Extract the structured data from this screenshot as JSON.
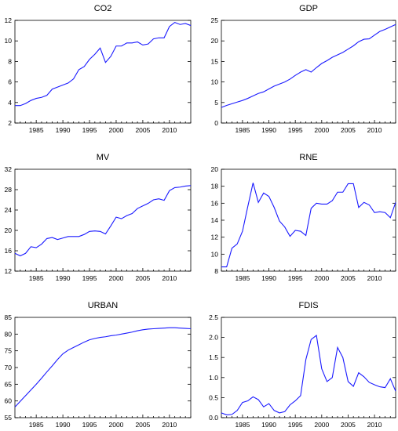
{
  "chart_data": [
    {
      "type": "line",
      "title": "CO2",
      "xlabel": "",
      "ylabel": "",
      "xlim": [
        1981,
        2014
      ],
      "ylim": [
        2,
        12
      ],
      "yticks": [
        2,
        4,
        6,
        8,
        10,
        12
      ],
      "xticks": [
        1985,
        1990,
        1995,
        2000,
        2005,
        2010
      ],
      "grid": false,
      "series": [
        {
          "color": "#1a1aff",
          "x": [
            1981,
            1982,
            1983,
            1984,
            1985,
            1986,
            1987,
            1988,
            1989,
            1990,
            1991,
            1992,
            1993,
            1994,
            1995,
            1996,
            1997,
            1998,
            1999,
            2000,
            2001,
            2002,
            2003,
            2004,
            2005,
            2006,
            2007,
            2008,
            2009,
            2010,
            2011,
            2012,
            2013,
            2014
          ],
          "y": [
            3.7,
            3.7,
            3.9,
            4.2,
            4.4,
            4.5,
            4.7,
            5.3,
            5.5,
            5.7,
            5.9,
            6.3,
            7.2,
            7.5,
            8.2,
            8.7,
            9.3,
            7.9,
            8.5,
            9.5,
            9.5,
            9.8,
            9.8,
            9.9,
            9.6,
            9.7,
            10.2,
            10.3,
            10.3,
            11.4,
            11.8,
            11.6,
            11.7,
            11.5
          ]
        }
      ]
    },
    {
      "type": "line",
      "title": "GDP",
      "xlabel": "",
      "ylabel": "",
      "xlim": [
        1981,
        2014
      ],
      "ylim": [
        0,
        25
      ],
      "yticks": [
        0,
        5,
        10,
        15,
        20,
        25
      ],
      "xticks": [
        1985,
        1990,
        1995,
        2000,
        2005,
        2010
      ],
      "grid": false,
      "series": [
        {
          "color": "#1a1aff",
          "x": [
            1981,
            1982,
            1983,
            1984,
            1985,
            1986,
            1987,
            1988,
            1989,
            1990,
            1991,
            1992,
            1993,
            1994,
            1995,
            1996,
            1997,
            1998,
            1999,
            2000,
            2001,
            2002,
            2003,
            2004,
            2005,
            2006,
            2007,
            2008,
            2009,
            2010,
            2011,
            2012,
            2013,
            2014
          ],
          "y": [
            3.8,
            4.3,
            4.7,
            5.1,
            5.5,
            6.0,
            6.6,
            7.2,
            7.6,
            8.3,
            9.0,
            9.5,
            10.0,
            10.7,
            11.6,
            12.4,
            13.0,
            12.4,
            13.5,
            14.5,
            15.2,
            16.0,
            16.6,
            17.2,
            18.0,
            18.8,
            19.8,
            20.4,
            20.5,
            21.4,
            22.3,
            22.8,
            23.4,
            24.0
          ]
        }
      ]
    },
    {
      "type": "line",
      "title": "MV",
      "xlabel": "",
      "ylabel": "",
      "xlim": [
        1981,
        2014
      ],
      "ylim": [
        12,
        32
      ],
      "yticks": [
        12,
        16,
        20,
        24,
        28,
        32
      ],
      "xticks": [
        1985,
        1990,
        1995,
        2000,
        2005,
        2010
      ],
      "grid": false,
      "series": [
        {
          "color": "#1a1aff",
          "x": [
            1981,
            1982,
            1983,
            1984,
            1985,
            1986,
            1987,
            1988,
            1989,
            1990,
            1991,
            1992,
            1993,
            1994,
            1995,
            1996,
            1997,
            1998,
            1999,
            2000,
            2001,
            2002,
            2003,
            2004,
            2005,
            2006,
            2007,
            2008,
            2009,
            2010,
            2011,
            2012,
            2013,
            2014
          ],
          "y": [
            15.5,
            15.0,
            15.5,
            16.8,
            16.6,
            17.3,
            18.4,
            18.6,
            18.2,
            18.5,
            18.8,
            18.8,
            18.8,
            19.2,
            19.8,
            19.9,
            19.8,
            19.3,
            20.9,
            22.6,
            22.3,
            22.9,
            23.3,
            24.3,
            24.8,
            25.3,
            26.0,
            26.2,
            25.9,
            27.8,
            28.4,
            28.5,
            28.7,
            28.8
          ]
        }
      ]
    },
    {
      "type": "line",
      "title": "RNE",
      "xlabel": "",
      "ylabel": "",
      "xlim": [
        1981,
        2014
      ],
      "ylim": [
        8,
        20
      ],
      "yticks": [
        8,
        10,
        12,
        14,
        16,
        18,
        20
      ],
      "xticks": [
        1985,
        1990,
        1995,
        2000,
        2005,
        2010
      ],
      "grid": false,
      "series": [
        {
          "color": "#1a1aff",
          "x": [
            1981,
            1982,
            1983,
            1984,
            1985,
            1986,
            1987,
            1988,
            1989,
            1990,
            1991,
            1992,
            1993,
            1994,
            1995,
            1996,
            1997,
            1998,
            1999,
            2000,
            2001,
            2002,
            2003,
            2004,
            2005,
            2006,
            2007,
            2008,
            2009,
            2010,
            2011,
            2012,
            2013,
            2014
          ],
          "y": [
            8.5,
            8.5,
            10.7,
            11.2,
            12.7,
            15.6,
            18.4,
            16.1,
            17.2,
            16.8,
            15.5,
            13.9,
            13.2,
            12.1,
            12.8,
            12.7,
            12.2,
            15.4,
            16.0,
            15.9,
            15.9,
            16.3,
            17.3,
            17.3,
            18.3,
            18.3,
            15.5,
            16.1,
            15.8,
            14.9,
            15.0,
            14.9,
            14.3,
            16.1
          ]
        }
      ]
    },
    {
      "type": "line",
      "title": "URBAN",
      "xlabel": "",
      "ylabel": "",
      "xlim": [
        1981,
        2014
      ],
      "ylim": [
        55,
        85
      ],
      "yticks": [
        55,
        60,
        65,
        70,
        75,
        80,
        85
      ],
      "xticks": [
        1985,
        1990,
        1995,
        2000,
        2005,
        2010
      ],
      "grid": false,
      "series": [
        {
          "color": "#1a1aff",
          "x": [
            1981,
            1982,
            1983,
            1984,
            1985,
            1986,
            1987,
            1988,
            1989,
            1990,
            1991,
            1992,
            1993,
            1994,
            1995,
            1996,
            1997,
            1998,
            1999,
            2000,
            2001,
            2002,
            2003,
            2004,
            2005,
            2006,
            2007,
            2008,
            2009,
            2010,
            2011,
            2012,
            2013,
            2014
          ],
          "y": [
            58.2,
            59.9,
            61.6,
            63.3,
            65.0,
            66.8,
            68.7,
            70.5,
            72.4,
            74.1,
            75.2,
            76.0,
            76.8,
            77.6,
            78.3,
            78.7,
            79.0,
            79.2,
            79.5,
            79.7,
            80.0,
            80.3,
            80.6,
            81.0,
            81.3,
            81.5,
            81.6,
            81.7,
            81.8,
            81.9,
            81.9,
            81.8,
            81.7,
            81.6
          ]
        }
      ]
    },
    {
      "type": "line",
      "title": "FDIS",
      "xlabel": "",
      "ylabel": "",
      "xlim": [
        1981,
        2014
      ],
      "ylim": [
        0.0,
        2.5
      ],
      "yticks": [
        0.0,
        0.5,
        1.0,
        1.5,
        2.0,
        2.5
      ],
      "xticks": [
        1985,
        1990,
        1995,
        2000,
        2005,
        2010
      ],
      "grid": false,
      "series": [
        {
          "color": "#1a1aff",
          "x": [
            1981,
            1982,
            1983,
            1984,
            1985,
            1986,
            1987,
            1988,
            1989,
            1990,
            1991,
            1992,
            1993,
            1994,
            1995,
            1996,
            1997,
            1998,
            1999,
            2000,
            2001,
            2002,
            2003,
            2004,
            2005,
            2006,
            2007,
            2008,
            2009,
            2010,
            2011,
            2012,
            2013,
            2014
          ],
          "y": [
            0.12,
            0.07,
            0.08,
            0.18,
            0.38,
            0.42,
            0.52,
            0.45,
            0.27,
            0.35,
            0.18,
            0.12,
            0.15,
            0.32,
            0.42,
            0.55,
            1.45,
            1.95,
            2.05,
            1.22,
            0.9,
            1.0,
            1.75,
            1.5,
            0.9,
            0.78,
            1.12,
            1.02,
            0.88,
            0.82,
            0.77,
            0.75,
            0.97,
            0.66
          ]
        }
      ]
    }
  ]
}
